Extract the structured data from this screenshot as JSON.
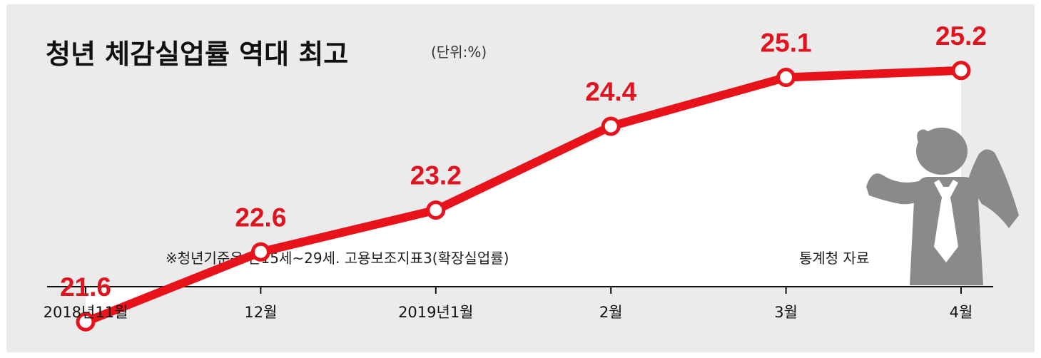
{
  "chart_data": {
    "type": "line",
    "title": "청년 체감실업률 역대 최고",
    "unit": "(단위:%)",
    "categories": [
      "2018년11월",
      "12월",
      "2019년1월",
      "2월",
      "3월",
      "4월"
    ],
    "values": [
      21.6,
      22.6,
      23.2,
      24.4,
      25.1,
      25.2
    ],
    "data_labels": [
      "21.6",
      "22.6",
      "23.2",
      "24.4",
      "25.1",
      "25.2"
    ],
    "ylim": [
      21.0,
      25.8
    ],
    "grid": false,
    "legend": "none",
    "note": "※청년기준은 만15세~29세. 고용보조지표3(확장실업률)",
    "source": "통계청 자료"
  },
  "colors": {
    "background": "#ebebeb",
    "plot_area": "#ffffff",
    "line": "#e8121b",
    "label": "#e0141e",
    "marker_fill": "#ffffff",
    "figure": "#8a8a8a",
    "axis": "#111111"
  },
  "icons": {
    "illustration": "stressed-man-icon"
  }
}
